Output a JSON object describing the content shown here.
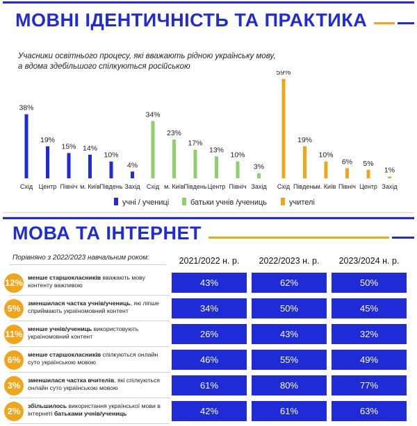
{
  "colors": {
    "blue": "#1f2bd6",
    "green": "#8cd16b",
    "orange": "#f2a51a"
  },
  "top": {
    "title": "МОВНІ ІДЕНТИЧНІСТЬ ТА ПРАКТИКА",
    "subtitle_line1": "Учасники освітнього процесу, які вважають рідною українську мову,",
    "subtitle_line2": "а вдома здебільшого спілкуються російською"
  },
  "chart_data": {
    "type": "bar",
    "title": "МОВНІ ІДЕНТИЧНІСТЬ ТА ПРАКТИКА",
    "subtitle": "Учасники освітнього процесу, які вважають рідною українську мову, а вдома здебільшого спілкуються російською",
    "ylim": [
      0,
      60
    ],
    "grid": false,
    "legend": "bottom",
    "series": [
      {
        "name": "учні / учениці",
        "color": "#1f2bd6",
        "categories": [
          "Схід",
          "Центр",
          "Північ",
          "м. Київ",
          "Південь",
          "Захід"
        ],
        "values": [
          38,
          19,
          15,
          14,
          10,
          4
        ]
      },
      {
        "name": "батьки учнів /учениць",
        "color": "#8cd16b",
        "categories": [
          "Схід",
          "м. Київ",
          "Південь",
          "Центр",
          "Північ",
          "Захід"
        ],
        "values": [
          34,
          23,
          17,
          13,
          10,
          3
        ]
      },
      {
        "name": "учителі",
        "color": "#f2a51a",
        "categories": [
          "Схід",
          "Південь",
          "м. Київ",
          "Північ",
          "Центр",
          "Захід"
        ],
        "values": [
          59,
          19,
          10,
          6,
          5,
          1
        ]
      }
    ]
  },
  "bottom": {
    "title": "МОВА ТА ІНТЕРНЕТ",
    "caption": "Порівняно з 2022/2023 навчальним роком:",
    "columns": [
      "2021/2022 н. р.",
      "2022/2023 н. р.",
      "2023/2024 н. р."
    ],
    "rows": [
      {
        "badge": "12%",
        "bold": "менше старшокласників",
        "rest": " вважають мову контенту важливою",
        "values": [
          "43%",
          "62%",
          "50%"
        ]
      },
      {
        "badge": "5%",
        "bold": "зменшилася частка учнів/учениць",
        "rest": ", які ліпше сприймають україномовний контент",
        "values": [
          "34%",
          "50%",
          "45%"
        ]
      },
      {
        "badge": "11%",
        "bold": "менше учнів/учениць",
        "rest": " використовують україномовний контент",
        "values": [
          "26%",
          "43%",
          "32%"
        ]
      },
      {
        "badge": "6%",
        "bold": "менше старшокласників",
        "rest": " спілкуються онлайн суто українською мовою",
        "values": [
          "46%",
          "55%",
          "49%"
        ]
      },
      {
        "badge": "3%",
        "bold": "зменшилася частка вчителів",
        "rest": ", які спілкуються онлайн суто українською мовою",
        "values": [
          "61%",
          "80%",
          "77%"
        ]
      },
      {
        "badge": "2%",
        "bold": "збільшилось",
        "rest": " використання української мови в інтернеті ",
        "bold2": "батьками учнів/учениць",
        "values": [
          "42%",
          "61%",
          "63%"
        ]
      }
    ]
  }
}
